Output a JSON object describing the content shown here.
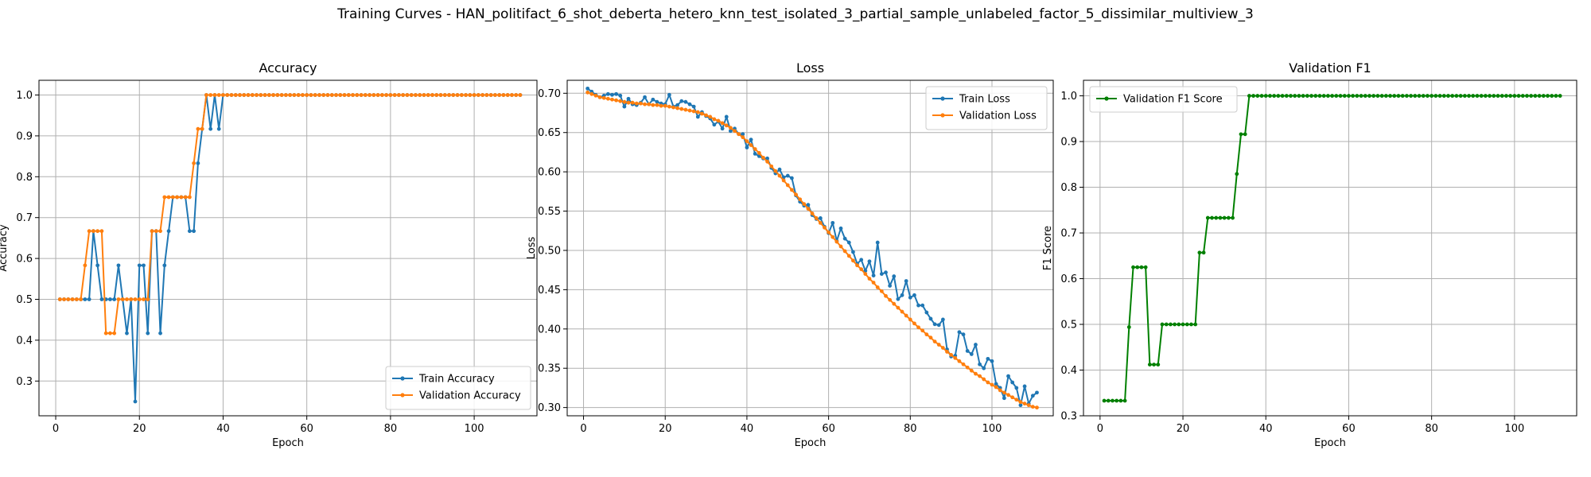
{
  "figure": {
    "title": "Training Curves - HAN_politifact_6_shot_deberta_hetero_knn_test_isolated_3_partial_sample_unlabeled_factor_5_dissimilar_multiview_3"
  },
  "colors": {
    "train": "#1f77b4",
    "validation": "#ff7f0e",
    "f1": "#008000",
    "grid": "#b0b0b0",
    "axes": "#000000"
  },
  "chart_data": [
    {
      "type": "line",
      "title": "Accuracy",
      "xlabel": "Epoch",
      "ylabel": "Accuracy",
      "xlim": [
        -4,
        115
      ],
      "ylim": [
        0.215,
        1.036
      ],
      "xticks": [
        0,
        20,
        40,
        60,
        80,
        100
      ],
      "yticks": [
        0.3,
        0.4,
        0.5,
        0.6,
        0.7,
        0.8,
        0.9,
        1.0
      ],
      "yticklabels": [
        "0.3",
        "0.4",
        "0.5",
        "0.6",
        "0.7",
        "0.8",
        "0.9",
        "1.0"
      ],
      "grid": true,
      "legend": "lower right",
      "x_start": 1,
      "series": [
        {
          "name": "Train Accuracy",
          "color": "#1f77b4",
          "values": [
            0.5,
            0.5,
            0.5,
            0.5,
            0.5,
            0.5,
            0.5,
            0.5,
            0.667,
            0.583,
            0.5,
            0.5,
            0.5,
            0.5,
            0.583,
            0.5,
            0.417,
            0.5,
            0.25,
            0.583,
            0.583,
            0.417,
            0.667,
            0.667,
            0.417,
            0.583,
            0.667,
            0.75,
            0.75,
            0.75,
            0.75,
            0.667,
            0.667,
            0.833,
            0.917,
            1.0,
            0.917,
            1.0,
            0.917,
            1.0,
            1.0,
            1.0,
            1.0,
            1.0,
            1.0,
            1.0,
            1.0,
            1.0,
            1.0,
            1.0,
            1.0,
            1.0,
            1.0,
            1.0,
            1.0,
            1.0,
            1.0,
            1.0,
            1.0,
            1.0,
            1.0,
            1.0,
            1.0,
            1.0,
            1.0,
            1.0,
            1.0,
            1.0,
            1.0,
            1.0,
            1.0,
            1.0,
            1.0,
            1.0,
            1.0,
            1.0,
            1.0,
            1.0,
            1.0,
            1.0,
            1.0,
            1.0,
            1.0,
            1.0,
            1.0,
            1.0,
            1.0,
            1.0,
            1.0,
            1.0,
            1.0,
            1.0,
            1.0,
            1.0,
            1.0,
            1.0,
            1.0,
            1.0,
            1.0,
            1.0,
            1.0,
            1.0,
            1.0,
            1.0,
            1.0,
            1.0,
            1.0,
            1.0,
            1.0,
            1.0,
            1.0
          ]
        },
        {
          "name": "Validation Accuracy",
          "color": "#ff7f0e",
          "values": [
            0.5,
            0.5,
            0.5,
            0.5,
            0.5,
            0.5,
            0.583,
            0.667,
            0.667,
            0.667,
            0.667,
            0.417,
            0.417,
            0.417,
            0.5,
            0.5,
            0.5,
            0.5,
            0.5,
            0.5,
            0.5,
            0.5,
            0.667,
            0.667,
            0.667,
            0.75,
            0.75,
            0.75,
            0.75,
            0.75,
            0.75,
            0.75,
            0.833,
            0.917,
            0.917,
            1.0,
            1.0,
            1.0,
            1.0,
            1.0,
            1.0,
            1.0,
            1.0,
            1.0,
            1.0,
            1.0,
            1.0,
            1.0,
            1.0,
            1.0,
            1.0,
            1.0,
            1.0,
            1.0,
            1.0,
            1.0,
            1.0,
            1.0,
            1.0,
            1.0,
            1.0,
            1.0,
            1.0,
            1.0,
            1.0,
            1.0,
            1.0,
            1.0,
            1.0,
            1.0,
            1.0,
            1.0,
            1.0,
            1.0,
            1.0,
            1.0,
            1.0,
            1.0,
            1.0,
            1.0,
            1.0,
            1.0,
            1.0,
            1.0,
            1.0,
            1.0,
            1.0,
            1.0,
            1.0,
            1.0,
            1.0,
            1.0,
            1.0,
            1.0,
            1.0,
            1.0,
            1.0,
            1.0,
            1.0,
            1.0,
            1.0,
            1.0,
            1.0,
            1.0,
            1.0,
            1.0,
            1.0,
            1.0,
            1.0,
            1.0,
            1.0
          ]
        }
      ]
    },
    {
      "type": "line",
      "title": "Loss",
      "xlabel": "Epoch",
      "ylabel": "Loss",
      "xlim": [
        -4,
        115
      ],
      "ylim": [
        0.2895,
        0.7165
      ],
      "xticks": [
        0,
        20,
        40,
        60,
        80,
        100
      ],
      "yticks": [
        0.3,
        0.35,
        0.4,
        0.45,
        0.5,
        0.55,
        0.6,
        0.65,
        0.7
      ],
      "yticklabels": [
        "0.30",
        "0.35",
        "0.40",
        "0.45",
        "0.50",
        "0.55",
        "0.60",
        "0.65",
        "0.70"
      ],
      "grid": true,
      "legend": "upper right",
      "x_start": 1,
      "series": [
        {
          "name": "Train Loss",
          "color": "#1f77b4",
          "values": [
            0.706,
            0.702,
            0.698,
            0.695,
            0.697,
            0.699,
            0.698,
            0.699,
            0.697,
            0.683,
            0.693,
            0.686,
            0.685,
            0.688,
            0.695,
            0.686,
            0.692,
            0.689,
            0.687,
            0.686,
            0.698,
            0.683,
            0.685,
            0.69,
            0.689,
            0.686,
            0.683,
            0.67,
            0.676,
            0.671,
            0.668,
            0.66,
            0.664,
            0.655,
            0.67,
            0.652,
            0.655,
            0.648,
            0.648,
            0.631,
            0.641,
            0.623,
            0.62,
            0.617,
            0.617,
            0.605,
            0.598,
            0.603,
            0.593,
            0.595,
            0.592,
            0.57,
            0.562,
            0.557,
            0.558,
            0.545,
            0.54,
            0.541,
            0.53,
            0.522,
            0.535,
            0.512,
            0.528,
            0.515,
            0.51,
            0.498,
            0.483,
            0.488,
            0.474,
            0.486,
            0.468,
            0.51,
            0.47,
            0.472,
            0.455,
            0.467,
            0.438,
            0.443,
            0.461,
            0.44,
            0.443,
            0.43,
            0.43,
            0.421,
            0.413,
            0.406,
            0.405,
            0.412,
            0.374,
            0.365,
            0.366,
            0.396,
            0.393,
            0.372,
            0.368,
            0.38,
            0.355,
            0.35,
            0.362,
            0.359,
            0.33,
            0.325,
            0.312,
            0.34,
            0.332,
            0.325,
            0.303,
            0.327,
            0.305,
            0.315,
            0.319
          ]
        },
        {
          "name": "Validation Loss",
          "color": "#ff7f0e",
          "values": [
            0.701,
            0.699,
            0.697,
            0.695,
            0.694,
            0.693,
            0.692,
            0.691,
            0.69,
            0.689,
            0.688,
            0.688,
            0.687,
            0.687,
            0.686,
            0.686,
            0.685,
            0.685,
            0.684,
            0.684,
            0.683,
            0.682,
            0.681,
            0.68,
            0.679,
            0.678,
            0.677,
            0.676,
            0.674,
            0.672,
            0.67,
            0.667,
            0.665,
            0.662,
            0.659,
            0.656,
            0.652,
            0.648,
            0.644,
            0.639,
            0.634,
            0.629,
            0.624,
            0.618,
            0.613,
            0.607,
            0.601,
            0.595,
            0.589,
            0.583,
            0.577,
            0.571,
            0.565,
            0.559,
            0.553,
            0.547,
            0.541,
            0.535,
            0.529,
            0.523,
            0.517,
            0.511,
            0.505,
            0.499,
            0.493,
            0.487,
            0.481,
            0.476,
            0.47,
            0.464,
            0.459,
            0.453,
            0.448,
            0.442,
            0.437,
            0.432,
            0.427,
            0.422,
            0.417,
            0.412,
            0.407,
            0.402,
            0.398,
            0.393,
            0.389,
            0.384,
            0.38,
            0.376,
            0.371,
            0.367,
            0.363,
            0.359,
            0.355,
            0.351,
            0.347,
            0.343,
            0.34,
            0.336,
            0.332,
            0.329,
            0.326,
            0.322,
            0.319,
            0.316,
            0.313,
            0.31,
            0.307,
            0.305,
            0.303,
            0.301,
            0.3
          ]
        }
      ]
    },
    {
      "type": "line",
      "title": "Validation F1",
      "xlabel": "Epoch",
      "ylabel": "F1 Score",
      "xlim": [
        -4,
        115
      ],
      "ylim": [
        0.3,
        1.034
      ],
      "xticks": [
        0,
        20,
        40,
        60,
        80,
        100
      ],
      "yticks": [
        0.3,
        0.4,
        0.5,
        0.6,
        0.7,
        0.8,
        0.9,
        1.0
      ],
      "yticklabels": [
        "0.3",
        "0.4",
        "0.5",
        "0.6",
        "0.7",
        "0.8",
        "0.9",
        "1.0"
      ],
      "grid": true,
      "legend": "upper left",
      "x_start": 1,
      "series": [
        {
          "name": "Validation F1 Score",
          "color": "#008000",
          "values": [
            0.333,
            0.333,
            0.333,
            0.333,
            0.333,
            0.333,
            0.494,
            0.625,
            0.625,
            0.625,
            0.625,
            0.412,
            0.412,
            0.412,
            0.5,
            0.5,
            0.5,
            0.5,
            0.5,
            0.5,
            0.5,
            0.5,
            0.5,
            0.657,
            0.657,
            0.733,
            0.733,
            0.733,
            0.733,
            0.733,
            0.733,
            0.733,
            0.829,
            0.916,
            0.916,
            1.0,
            1.0,
            1.0,
            1.0,
            1.0,
            1.0,
            1.0,
            1.0,
            1.0,
            1.0,
            1.0,
            1.0,
            1.0,
            1.0,
            1.0,
            1.0,
            1.0,
            1.0,
            1.0,
            1.0,
            1.0,
            1.0,
            1.0,
            1.0,
            1.0,
            1.0,
            1.0,
            1.0,
            1.0,
            1.0,
            1.0,
            1.0,
            1.0,
            1.0,
            1.0,
            1.0,
            1.0,
            1.0,
            1.0,
            1.0,
            1.0,
            1.0,
            1.0,
            1.0,
            1.0,
            1.0,
            1.0,
            1.0,
            1.0,
            1.0,
            1.0,
            1.0,
            1.0,
            1.0,
            1.0,
            1.0,
            1.0,
            1.0,
            1.0,
            1.0,
            1.0,
            1.0,
            1.0,
            1.0,
            1.0,
            1.0,
            1.0,
            1.0,
            1.0,
            1.0,
            1.0,
            1.0,
            1.0,
            1.0,
            1.0,
            1.0
          ]
        }
      ]
    }
  ]
}
